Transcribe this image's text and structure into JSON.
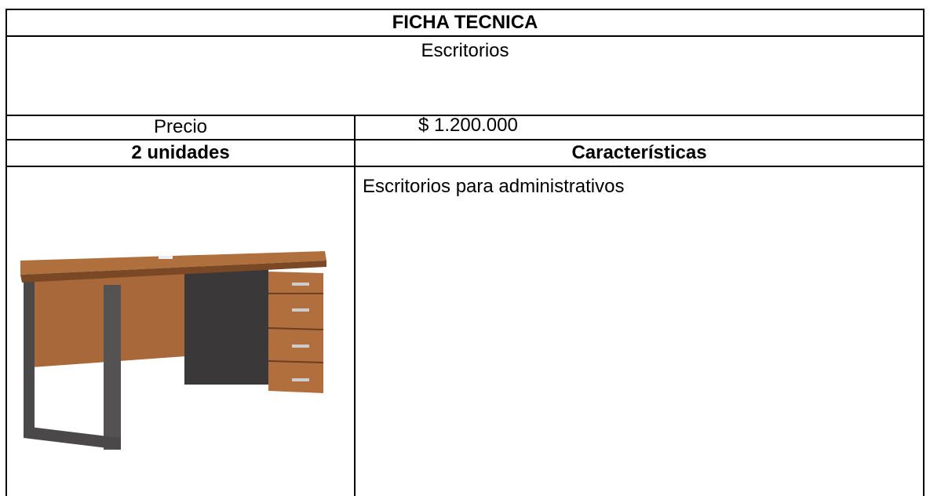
{
  "sheet": {
    "title": "FICHA TECNICA",
    "subtitle": "Escritorios",
    "price_label": "Precio",
    "price_value": "$ 1.200.000",
    "units": "2 unidades",
    "features_header": "Características",
    "features": "Escritorios para administrativos"
  }
}
